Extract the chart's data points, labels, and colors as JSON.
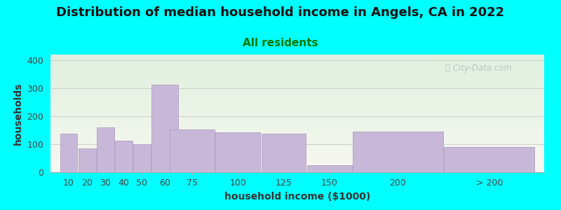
{
  "title": "Distribution of median household income in Angels, CA in 2022",
  "subtitle": "All residents",
  "xlabel": "household income ($1000)",
  "ylabel": "households",
  "background_color": "#00FFFF",
  "plot_bg_top": "#dff0df",
  "plot_bg_bottom": "#f8f8f0",
  "bar_color": "#c8b8d8",
  "bar_edge_color": "#b0a0c0",
  "categories": [
    "10",
    "20",
    "30",
    "40",
    "50",
    "60",
    "75",
    "100",
    "125",
    "150",
    "200",
    "> 200"
  ],
  "values": [
    137,
    85,
    160,
    112,
    100,
    312,
    152,
    143,
    137,
    25,
    145,
    90
  ],
  "bar_widths": [
    10,
    10,
    10,
    10,
    10,
    15,
    25,
    25,
    25,
    25,
    50,
    50
  ],
  "bar_lefts": [
    5,
    15,
    25,
    35,
    45,
    55,
    65,
    90,
    115,
    140,
    165,
    215
  ],
  "xlim": [
    0,
    270
  ],
  "ylim": [
    0,
    420
  ],
  "yticks": [
    0,
    100,
    200,
    300,
    400
  ],
  "title_fontsize": 13,
  "subtitle_fontsize": 11,
  "label_fontsize": 10,
  "tick_fontsize": 9,
  "watermark_text": "ⓘ City-Data.com",
  "subtitle_color": "#007700",
  "title_color": "#111111",
  "tick_color": "#444444",
  "label_color": "#333333",
  "watermark_color": "#bbbbbb"
}
